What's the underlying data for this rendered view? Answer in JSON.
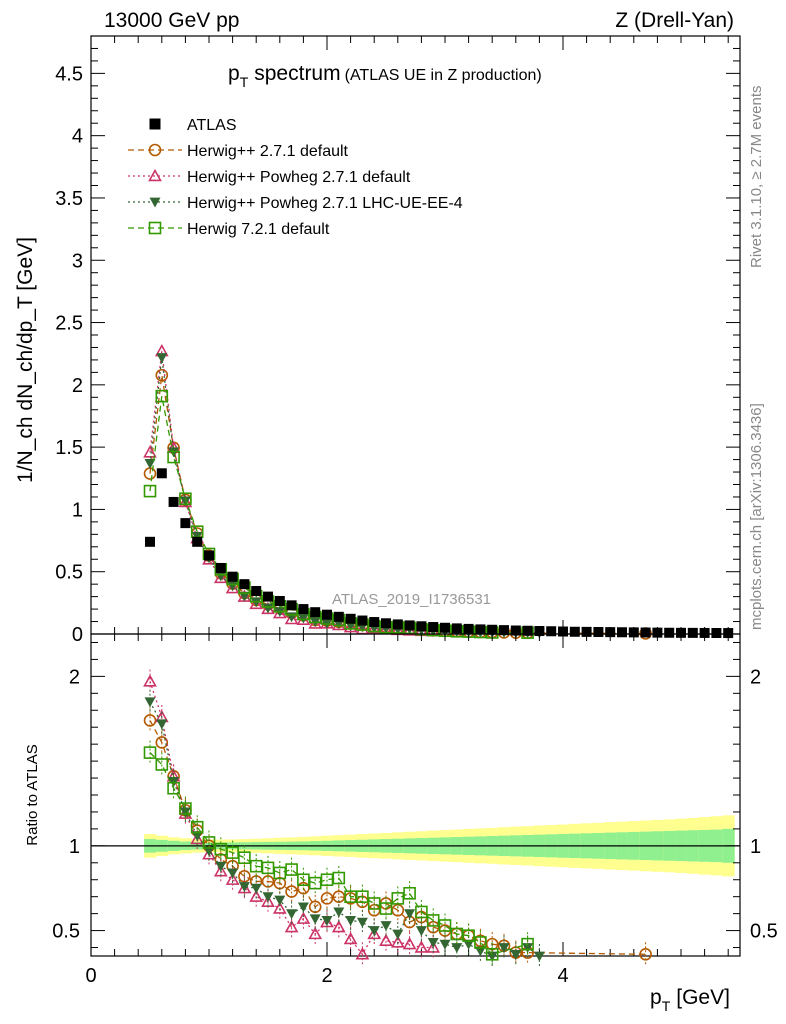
{
  "header": {
    "left": "13000 GeV pp",
    "right": "Z (Drell-Yan)"
  },
  "side_labels": {
    "top": "Rivet 3.1.10, ≥ 2.7M events",
    "bottom": "mcplots.cern.ch [arXiv:1306.3436]"
  },
  "chart_data": {
    "type": "scatter",
    "title_main": "p",
    "title_sub": "T",
    "title_word": "spectrum",
    "title_note": "(ATLAS UE in Z production)",
    "watermark": "ATLAS_2019_I1736531",
    "xlabel_main": "p",
    "xlabel_sub": "T",
    "xlabel_unit": "[GeV]",
    "ylabel_top": "1/N_ch dN_ch/dp_T [GeV]",
    "ylabel_bottom": "Ratio to ATLAS",
    "xlim": [
      0,
      5.5
    ],
    "ylim_top": [
      0,
      4.8
    ],
    "ylim_bottom": [
      0.35,
      2.25
    ],
    "x_ticks": [
      "0",
      "2",
      "4"
    ],
    "y_ticks_top": [
      "0",
      "0.5",
      "1",
      "1.5",
      "2",
      "2.5",
      "3",
      "3.5",
      "4",
      "4.5"
    ],
    "y_ticks_bottom": [
      "0.5",
      "1",
      "2"
    ],
    "band_color_inner": "#90f090",
    "band_color_outer": "#ffff90",
    "x": [
      0.5,
      0.6,
      0.7,
      0.8,
      0.9,
      1.0,
      1.1,
      1.2,
      1.3,
      1.4,
      1.5,
      1.6,
      1.7,
      1.8,
      1.9,
      2.0,
      2.1,
      2.2,
      2.3,
      2.4,
      2.5,
      2.6,
      2.7,
      2.8,
      2.9,
      3.0,
      3.1,
      3.2,
      3.3,
      3.4,
      3.5,
      3.6,
      3.7,
      3.8,
      3.9,
      4.0,
      4.1,
      4.2,
      4.3,
      4.4,
      4.5,
      4.6,
      4.7,
      4.8,
      4.9,
      5.0,
      5.1,
      5.2,
      5.3,
      5.4
    ],
    "atlas": [
      0.74,
      1.29,
      1.06,
      0.89,
      0.74,
      0.63,
      0.53,
      0.46,
      0.4,
      0.345,
      0.3,
      0.265,
      0.23,
      0.2,
      0.175,
      0.155,
      0.138,
      0.122,
      0.108,
      0.096,
      0.086,
      0.077,
      0.069,
      0.062,
      0.056,
      0.05,
      0.045,
      0.041,
      0.037,
      0.034,
      0.031,
      0.028,
      0.026,
      0.024,
      0.022,
      0.02,
      0.018,
      0.017,
      0.016,
      0.015,
      0.014,
      0.013,
      0.012,
      0.011,
      0.01,
      0.0095,
      0.009,
      0.0085,
      0.008,
      0.0075
    ],
    "band_inner": [
      0.04,
      0.035,
      0.03,
      0.025,
      0.022,
      0.02,
      0.02,
      0.02,
      0.021,
      0.022,
      0.023,
      0.024,
      0.025,
      0.026,
      0.028,
      0.03,
      0.032,
      0.034,
      0.036,
      0.038,
      0.04,
      0.042,
      0.044,
      0.046,
      0.048,
      0.05,
      0.052,
      0.054,
      0.056,
      0.058,
      0.06,
      0.062,
      0.064,
      0.066,
      0.068,
      0.07,
      0.072,
      0.074,
      0.076,
      0.078,
      0.08,
      0.082,
      0.084,
      0.086,
      0.088,
      0.09,
      0.092,
      0.094,
      0.096,
      0.1
    ],
    "band_outer": [
      0.07,
      0.06,
      0.05,
      0.045,
      0.04,
      0.038,
      0.037,
      0.038,
      0.04,
      0.042,
      0.045,
      0.048,
      0.05,
      0.053,
      0.056,
      0.06,
      0.063,
      0.066,
      0.07,
      0.073,
      0.076,
      0.08,
      0.083,
      0.086,
      0.09,
      0.093,
      0.096,
      0.1,
      0.103,
      0.106,
      0.11,
      0.113,
      0.116,
      0.12,
      0.123,
      0.126,
      0.13,
      0.133,
      0.136,
      0.14,
      0.143,
      0.146,
      0.15,
      0.153,
      0.156,
      0.16,
      0.165,
      0.17,
      0.175,
      0.18
    ],
    "series": [
      {
        "name": "ATLAS",
        "color": "#000000",
        "marker": "square-filled",
        "line": "none",
        "ratio": []
      },
      {
        "name": "Herwig++ 2.7.1 default",
        "color": "#b35900",
        "marker": "circle-open",
        "line": "dashed",
        "ratio": [
          1.74,
          1.61,
          1.41,
          1.21,
          1.09,
          1.0,
          0.92,
          0.88,
          0.82,
          0.79,
          0.79,
          0.78,
          0.73,
          0.75,
          0.64,
          0.69,
          0.7,
          0.69,
          0.67,
          0.62,
          0.66,
          0.62,
          0.55,
          0.58,
          0.52,
          0.5,
          0.48,
          0.47,
          0.44,
          0.42,
          0.41,
          0.37,
          0.37,
          null,
          null,
          null,
          null,
          null,
          null,
          null,
          null,
          null,
          0.36,
          null,
          null,
          null,
          null,
          null,
          null,
          null
        ]
      },
      {
        "name": "Herwig++ Powheg 2.7.1 default",
        "color": "#cc3366",
        "marker": "triangle-open",
        "line": "dotted",
        "ratio": [
          1.97,
          1.76,
          1.41,
          1.19,
          1.04,
          0.95,
          0.85,
          0.8,
          0.75,
          0.7,
          0.67,
          0.63,
          0.52,
          0.57,
          0.48,
          0.55,
          0.52,
          0.45,
          0.36,
          0.48,
          0.44,
          0.43,
          0.42,
          0.4,
          0.4,
          null,
          null,
          null,
          null,
          null,
          null,
          null,
          null,
          null,
          null,
          null,
          null,
          null,
          null,
          null,
          null,
          null,
          null,
          null,
          null,
          null,
          null,
          null,
          null,
          null
        ]
      },
      {
        "name": "Herwig++ Powheg 2.7.1 LHC-UE-EE-4",
        "color": "#336633",
        "marker": "triangle-down-filled",
        "line": "dotted",
        "ratio": [
          1.85,
          1.72,
          1.38,
          1.2,
          1.06,
          0.97,
          0.88,
          0.84,
          0.76,
          0.75,
          0.7,
          0.68,
          0.6,
          0.64,
          0.57,
          0.56,
          0.61,
          0.56,
          0.55,
          0.5,
          0.53,
          0.48,
          0.6,
          0.5,
          0.43,
          0.42,
          0.4,
          0.42,
          0.38,
          0.35,
          0.4,
          0.36,
          0.4,
          0.35,
          null,
          null,
          null,
          null,
          null,
          null,
          null,
          null,
          null,
          null,
          null,
          null,
          null,
          null,
          null,
          null
        ]
      },
      {
        "name": "Herwig 7.2.1 default",
        "color": "#339900",
        "marker": "square-open",
        "line": "dashed",
        "ratio": [
          1.55,
          1.48,
          1.34,
          1.22,
          1.11,
          1.02,
          0.98,
          0.96,
          0.93,
          0.88,
          0.87,
          0.84,
          0.86,
          0.8,
          0.78,
          0.8,
          0.81,
          0.7,
          0.7,
          0.66,
          0.63,
          0.69,
          0.72,
          0.61,
          0.56,
          0.53,
          0.48,
          0.47,
          0.43,
          0.36,
          null,
          null,
          0.42,
          null,
          null,
          null,
          null,
          null,
          null,
          null,
          null,
          null,
          null,
          null,
          null,
          null,
          null,
          null,
          null,
          null
        ]
      }
    ]
  }
}
